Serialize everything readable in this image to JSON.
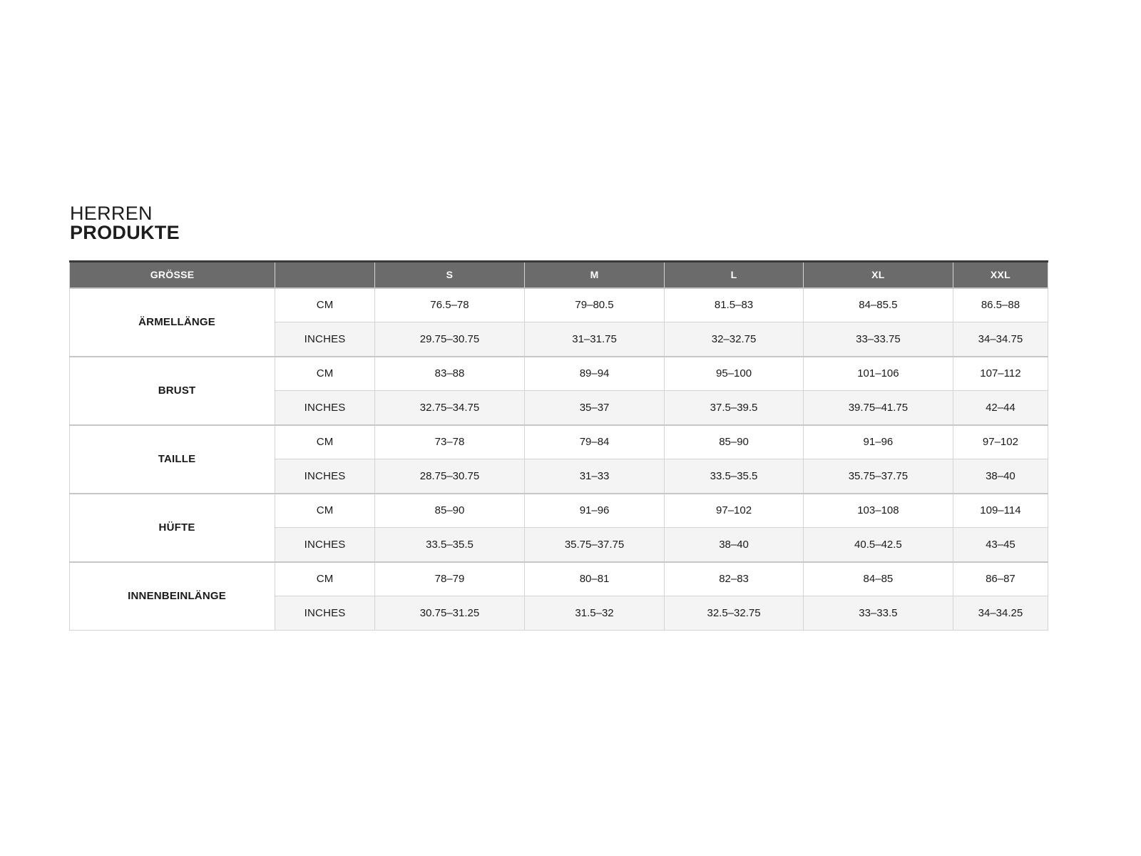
{
  "page": {
    "title_line1": "HERREN",
    "title_line2": "PRODUKTE"
  },
  "size_chart": {
    "columns": [
      "GRÖSSE",
      "",
      "S",
      "M",
      "L",
      "XL",
      "XXL"
    ],
    "column_widths_pct": [
      21.0,
      10.2,
      15.3,
      14.3,
      14.2,
      15.3,
      9.7
    ],
    "rows": [
      {
        "label": "ÄRMELLÄNGE",
        "measurements": [
          {
            "unit": "CM",
            "values": [
              "76.5–78",
              "79–80.5",
              "81.5–83",
              "84–85.5",
              "86.5–88"
            ]
          },
          {
            "unit": "INCHES",
            "values": [
              "29.75–30.75",
              "31–31.75",
              "32–32.75",
              "33–33.75",
              "34–34.75"
            ]
          }
        ]
      },
      {
        "label": "BRUST",
        "measurements": [
          {
            "unit": "CM",
            "values": [
              "83–88",
              "89–94",
              "95–100",
              "101–106",
              "107–112"
            ]
          },
          {
            "unit": "INCHES",
            "values": [
              "32.75–34.75",
              "35–37",
              "37.5–39.5",
              "39.75–41.75",
              "42–44"
            ]
          }
        ]
      },
      {
        "label": "TAILLE",
        "measurements": [
          {
            "unit": "CM",
            "values": [
              "73–78",
              "79–84",
              "85–90",
              "91–96",
              "97–102"
            ]
          },
          {
            "unit": "INCHES",
            "values": [
              "28.75–30.75",
              "31–33",
              "33.5–35.5",
              "35.75–37.75",
              "38–40"
            ]
          }
        ]
      },
      {
        "label": "HÜFTE",
        "measurements": [
          {
            "unit": "CM",
            "values": [
              "85–90",
              "91–96",
              "97–102",
              "103–108",
              "109–114"
            ]
          },
          {
            "unit": "INCHES",
            "values": [
              "33.5–35.5",
              "35.75–37.75",
              "38–40",
              "40.5–42.5",
              "43–45"
            ]
          }
        ]
      },
      {
        "label": "INNENBEINLÄNGE",
        "measurements": [
          {
            "unit": "CM",
            "values": [
              "78–79",
              "80–81",
              "82–83",
              "84–85",
              "86–87"
            ]
          },
          {
            "unit": "INCHES",
            "values": [
              "30.75–31.25",
              "31.5–32",
              "32.5–32.75",
              "33–33.5",
              "34–34.25"
            ]
          }
        ]
      }
    ]
  },
  "colors": {
    "header_bg": "#6b6b6b",
    "header_top_border": "#3a3a3a",
    "header_text": "#ffffff",
    "alt_row_bg": "#f4f4f4",
    "grid_border": "#d4d4d4",
    "group_border": "#c6c6c6",
    "text": "#1a1a1a"
  }
}
